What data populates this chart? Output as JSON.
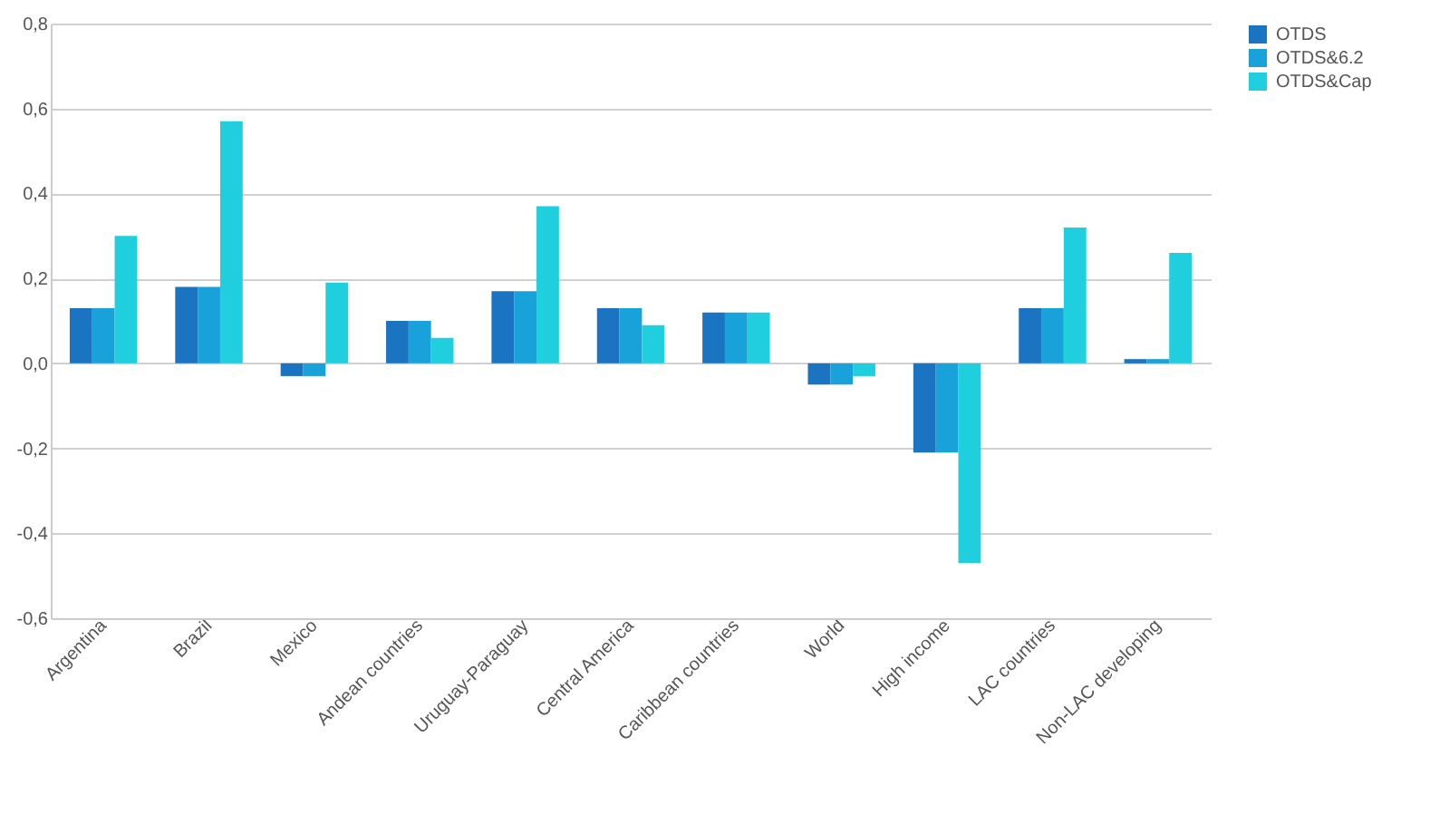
{
  "chart_data": {
    "type": "bar",
    "categories": [
      "Argentina",
      "Brazil",
      "Mexico",
      "Andean countries",
      "Uruguay-Paraguay",
      "Central America",
      "Caribbean countries",
      "World",
      "High income",
      "LAC countries",
      "Non-LAC developing"
    ],
    "series": [
      {
        "name": "OTDS",
        "color": "#1a74c2",
        "values": [
          0.13,
          0.18,
          -0.03,
          0.1,
          0.17,
          0.13,
          0.12,
          -0.05,
          -0.21,
          0.13,
          0.01
        ]
      },
      {
        "name": "OTDS&6.2",
        "color": "#19a2da",
        "values": [
          0.13,
          0.18,
          -0.03,
          0.1,
          0.17,
          0.13,
          0.12,
          -0.05,
          -0.21,
          0.13,
          0.01
        ]
      },
      {
        "name": "OTDS&Cap",
        "color": "#1fcfde",
        "values": [
          0.3,
          0.57,
          0.19,
          0.06,
          0.37,
          0.09,
          0.12,
          -0.03,
          -0.47,
          0.32,
          0.26
        ]
      }
    ],
    "ylim": [
      -0.6,
      0.8
    ],
    "yticks": [
      {
        "value": -0.6,
        "label": "-0,6"
      },
      {
        "value": -0.4,
        "label": "-0,4"
      },
      {
        "value": -0.2,
        "label": "-0,2"
      },
      {
        "value": 0,
        "label": "0,0"
      },
      {
        "value": 0.2,
        "label": "0,2"
      },
      {
        "value": 0.4,
        "label": "0,4"
      },
      {
        "value": 0.6,
        "label": "0,6"
      },
      {
        "value": 0.8,
        "label": "0,8"
      }
    ],
    "grid": "y",
    "legend": "right"
  }
}
